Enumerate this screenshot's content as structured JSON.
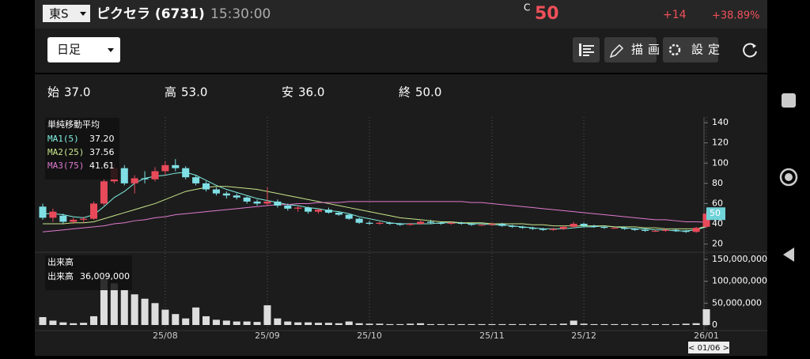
{
  "header": {
    "market": "東S",
    "name": "ピクセラ (6731)",
    "time": "15:30:00",
    "price_mark": "C",
    "price": "50",
    "change": "+14",
    "change_pct": "+38.89%"
  },
  "toolbar": {
    "period": "日足",
    "draw": "描画",
    "settings": "設定"
  },
  "summary": [
    {
      "label": "始",
      "value": "37.0"
    },
    {
      "label": "高",
      "value": "53.0"
    },
    {
      "label": "安",
      "value": "36.0"
    },
    {
      "label": "終",
      "value": "50.0"
    }
  ],
  "chart_data": [
    {
      "type": "candlestick",
      "title": "単純移動平均",
      "up_color": "#e84a5a",
      "down_color": "#7fe0e6",
      "cursor_label": "< 01/06 >",
      "categories": [
        null,
        null,
        null,
        null,
        null,
        null,
        null,
        null,
        null,
        null,
        null,
        null,
        "25/08",
        null,
        null,
        null,
        null,
        null,
        null,
        null,
        null,
        null,
        "25/09",
        null,
        null,
        null,
        null,
        null,
        null,
        null,
        null,
        null,
        "25/10",
        null,
        null,
        null,
        null,
        null,
        null,
        null,
        null,
        null,
        null,
        null,
        "25/11",
        null,
        null,
        null,
        null,
        null,
        null,
        null,
        null,
        "25/12",
        null,
        null,
        null,
        null,
        null,
        null,
        null,
        null,
        null,
        null,
        null,
        "26/01"
      ],
      "open": [
        57,
        46,
        48,
        42,
        44,
        45,
        60,
        82,
        95,
        80,
        85,
        84,
        92,
        98,
        95,
        86,
        80,
        74,
        70,
        68,
        66,
        62,
        60,
        62,
        58,
        55,
        56,
        52,
        54,
        51,
        49,
        45,
        41,
        40,
        41,
        40,
        39,
        40,
        42,
        41,
        40,
        41,
        40,
        39,
        39,
        40,
        38,
        37,
        36,
        35,
        34,
        35,
        37,
        40,
        38,
        37,
        36,
        36,
        35,
        34,
        33,
        33,
        34,
        33,
        32,
        37
      ],
      "high": [
        60,
        55,
        50,
        46,
        47,
        62,
        85,
        100,
        98,
        88,
        92,
        96,
        102,
        104,
        97,
        88,
        82,
        76,
        72,
        70,
        67,
        64,
        76,
        64,
        60,
        58,
        57,
        55,
        56,
        52,
        50,
        46,
        43,
        42,
        42,
        41,
        41,
        43,
        44,
        42,
        42,
        42,
        41,
        40,
        41,
        41,
        39,
        38,
        37,
        36,
        36,
        38,
        42,
        41,
        39,
        38,
        37,
        37,
        36,
        35,
        34,
        35,
        35,
        34,
        37,
        53
      ],
      "low": [
        44,
        42,
        40,
        40,
        41,
        44,
        58,
        80,
        78,
        70,
        80,
        82,
        88,
        92,
        84,
        78,
        72,
        68,
        65,
        64,
        60,
        58,
        58,
        56,
        53,
        52,
        50,
        50,
        50,
        48,
        44,
        40,
        39,
        39,
        39,
        38,
        38,
        39,
        40,
        39,
        39,
        39,
        38,
        38,
        38,
        37,
        36,
        35,
        34,
        33,
        33,
        34,
        36,
        37,
        36,
        35,
        35,
        34,
        33,
        32,
        32,
        32,
        32,
        31,
        31,
        36
      ],
      "close": [
        46,
        52,
        42,
        44,
        45,
        60,
        82,
        95,
        80,
        85,
        84,
        92,
        98,
        95,
        86,
        80,
        74,
        70,
        68,
        66,
        62,
        60,
        62,
        58,
        55,
        56,
        52,
        54,
        51,
        49,
        45,
        41,
        40,
        41,
        40,
        39,
        40,
        42,
        41,
        40,
        41,
        40,
        39,
        39,
        40,
        38,
        37,
        36,
        35,
        34,
        35,
        37,
        40,
        38,
        37,
        36,
        36,
        35,
        34,
        33,
        33,
        34,
        33,
        32,
        36,
        50
      ],
      "series": [
        {
          "name": "MA1(5)",
          "color": "#7ff0e0",
          "last_label": "37.20",
          "values": [
            50,
            50,
            49,
            47,
            46,
            49,
            57,
            66,
            72,
            80,
            85,
            87,
            88,
            90,
            91,
            88,
            83,
            78,
            74,
            71,
            68,
            65,
            63,
            61,
            59,
            58,
            56,
            55,
            53,
            52,
            50,
            47,
            45,
            43,
            41,
            40,
            40,
            40,
            40,
            41,
            41,
            41,
            40,
            40,
            39,
            39,
            38,
            37,
            36,
            35,
            35,
            35,
            36,
            37,
            37,
            38,
            37,
            36,
            35,
            35,
            34,
            34,
            33,
            33,
            34,
            37.2
          ]
        },
        {
          "name": "MA2(25)",
          "color": "#c8e68a",
          "last_label": "37.56",
          "values": [
            40,
            40,
            40,
            41,
            41,
            42,
            45,
            48,
            51,
            54,
            57,
            60,
            64,
            68,
            72,
            74,
            76,
            77,
            77,
            76,
            75,
            74,
            72,
            70,
            68,
            66,
            64,
            62,
            60,
            58,
            56,
            54,
            52,
            50,
            48,
            46,
            45,
            44,
            43,
            42,
            42,
            41,
            41,
            41,
            40,
            40,
            40,
            40,
            39,
            39,
            38,
            38,
            38,
            38,
            38,
            38,
            37,
            37,
            37,
            36,
            36,
            35,
            35,
            35,
            35,
            37.56
          ]
        },
        {
          "name": "MA3(75)",
          "color": "#e07ad0",
          "last_label": "41.61",
          "values": [
            32,
            33,
            34,
            35,
            36,
            37,
            38,
            40,
            41,
            43,
            44,
            46,
            47,
            49,
            50,
            51,
            52,
            53,
            54,
            55,
            56,
            57,
            58,
            59,
            59,
            60,
            60,
            61,
            61,
            61,
            62,
            62,
            62,
            62,
            62,
            62,
            62,
            62,
            62,
            62,
            62,
            62,
            61,
            61,
            60,
            59,
            58,
            57,
            56,
            55,
            54,
            53,
            52,
            51,
            50,
            49,
            48,
            47,
            46,
            45,
            44,
            44,
            43,
            42,
            42,
            41.61
          ]
        }
      ],
      "ylim": [
        15,
        144
      ],
      "yticks": [
        20,
        40,
        60,
        80,
        100,
        120,
        140
      ],
      "grid": true
    },
    {
      "type": "bar",
      "title": "出来高",
      "series_name": "出来高",
      "color": "#dddddd",
      "legend_value": "36,009,000",
      "values": [
        18000000,
        10000000,
        6000000,
        4000000,
        5000000,
        20000000,
        105000000,
        95000000,
        80000000,
        70000000,
        60000000,
        50000000,
        35000000,
        25000000,
        15000000,
        40000000,
        20000000,
        12000000,
        10000000,
        8000000,
        8000000,
        7000000,
        45000000,
        15000000,
        8000000,
        6000000,
        6000000,
        5000000,
        5000000,
        4000000,
        8000000,
        4000000,
        3000000,
        3000000,
        2000000,
        2000000,
        3000000,
        4000000,
        2000000,
        2000000,
        2000000,
        2000000,
        2000000,
        2000000,
        2000000,
        2000000,
        2000000,
        2000000,
        2000000,
        2000000,
        2000000,
        3000000,
        10000000,
        3000000,
        2000000,
        2000000,
        2000000,
        2000000,
        2000000,
        2000000,
        2000000,
        2000000,
        2000000,
        3000000,
        4000000,
        36009000
      ],
      "ylim": [
        0,
        160000000
      ],
      "yticks": [
        0,
        {
          "value": 50000000,
          "label": "50,000,000"
        },
        {
          "value": 100000000,
          "label": "100,000,000"
        },
        {
          "value": 150000000,
          "label": "150,000,000"
        }
      ]
    }
  ]
}
